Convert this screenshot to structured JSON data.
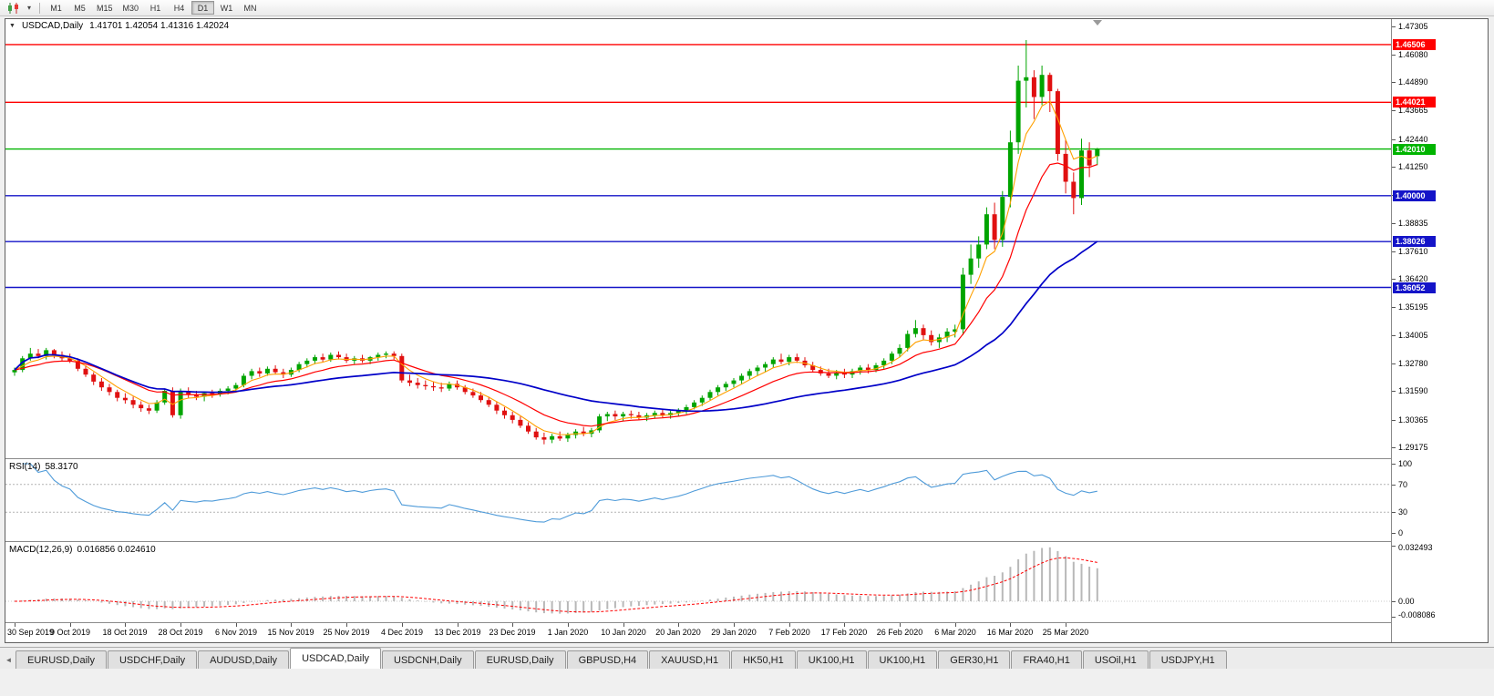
{
  "icons": {
    "collapse": "▼",
    "dropdown": "▾",
    "tab_scroll_left": "◄"
  },
  "toolbar": {
    "timeframes": [
      {
        "label": "M1",
        "active": false
      },
      {
        "label": "M5",
        "active": false
      },
      {
        "label": "M15",
        "active": false
      },
      {
        "label": "M30",
        "active": false
      },
      {
        "label": "H1",
        "active": false
      },
      {
        "label": "H4",
        "active": false
      },
      {
        "label": "D1",
        "active": true
      },
      {
        "label": "W1",
        "active": false
      },
      {
        "label": "MN",
        "active": false
      }
    ]
  },
  "chart": {
    "title": "USDCAD,Daily",
    "ohlc": "1.41701 1.42054 1.41316 1.42024"
  },
  "rsi": {
    "name": "RSI(14)",
    "value": "58.3170",
    "period": 14,
    "levels": [
      70,
      30
    ],
    "scale": [
      "100",
      "70",
      "30",
      "0"
    ]
  },
  "macd": {
    "name": "MACD(12,26,9)",
    "values": "0.016856 0.024610",
    "fast": 12,
    "slow": 26,
    "signal": 9,
    "scale_max": "0.032493",
    "scale_zero": "0.00",
    "scale_min": "-0.008086"
  },
  "colors": {
    "bull": "#00a400",
    "bear": "#e01010",
    "ma_fast": "#ffa000",
    "ma_mid": "#ff0000",
    "ma_slow": "#0000c8",
    "rsi": "#4f9bd9",
    "macd_hist": "#b8b8b8",
    "macd_signal": "#ff0000",
    "hline_red": "#ff0000",
    "hline_green": "#00b400",
    "hline_blue": "#1414c8"
  },
  "tabs": [
    {
      "label": "EURUSD,Daily",
      "active": false
    },
    {
      "label": "USDCHF,Daily",
      "active": false
    },
    {
      "label": "AUDUSD,Daily",
      "active": false
    },
    {
      "label": "USDCAD,Daily",
      "active": true
    },
    {
      "label": "USDCNH,Daily",
      "active": false
    },
    {
      "label": "EURUSD,Daily",
      "active": false
    },
    {
      "label": "GBPUSD,H4",
      "active": false
    },
    {
      "label": "XAUUSD,H1",
      "active": false
    },
    {
      "label": "HK50,H1",
      "active": false
    },
    {
      "label": "UK100,H1",
      "active": false
    },
    {
      "label": "UK100,H1",
      "active": false
    },
    {
      "label": "GER30,H1",
      "active": false
    },
    {
      "label": "FRA40,H1",
      "active": false
    },
    {
      "label": "USOil,H1",
      "active": false
    },
    {
      "label": "USDJPY,H1",
      "active": false
    }
  ],
  "chart_data": {
    "type": "candlestick",
    "symbol": "USDCAD",
    "timeframe": "Daily",
    "title": "USDCAD,Daily",
    "ohlc_display": {
      "open": "1.41701",
      "high": "1.42054",
      "low": "1.41316",
      "close": "1.42024"
    },
    "x_labels": [
      "30 Sep 2019",
      "9 Oct 2019",
      "18 Oct 2019",
      "28 Oct 2019",
      "6 Nov 2019",
      "15 Nov 2019",
      "25 Nov 2019",
      "4 Dec 2019",
      "13 Dec 2019",
      "23 Dec 2019",
      "1 Jan 2020",
      "10 Jan 2020",
      "20 Jan 2020",
      "29 Jan 2020",
      "7 Feb 2020",
      "17 Feb 2020",
      "26 Feb 2020",
      "6 Mar 2020",
      "16 Mar 2020",
      "25 Mar 2020"
    ],
    "y_ticks": [
      1.47305,
      1.4608,
      1.4489,
      1.43665,
      1.4244,
      1.4125,
      1.40025,
      1.38835,
      1.3761,
      1.3642,
      1.35195,
      1.34005,
      1.3278,
      1.3159,
      1.30365,
      1.29175
    ],
    "ylim": [
      1.287,
      1.476
    ],
    "hlines": [
      {
        "price": 1.46506,
        "label": "1.46506",
        "color": "#ff0000"
      },
      {
        "price": 1.44021,
        "label": "1.44021",
        "color": "#ff0000"
      },
      {
        "price": 1.4201,
        "label": "1.42010",
        "color": "#00b400"
      },
      {
        "price": 1.4,
        "label": "1.40000",
        "color": "#1414c8"
      },
      {
        "price": 1.38026,
        "label": "1.38026",
        "color": "#1414c8"
      },
      {
        "price": 1.36052,
        "label": "1.36052",
        "color": "#1414c8"
      }
    ],
    "overlays": [
      {
        "name": "ma-fast",
        "method": "ema",
        "period": 5,
        "color": "#ffa000"
      },
      {
        "name": "ma-mid",
        "method": "ema",
        "period": 13,
        "color": "#ff0000"
      },
      {
        "name": "ma-slow",
        "method": "lwma",
        "period": 50,
        "color": "#0000c8"
      }
    ],
    "candles": [
      [
        1.324,
        1.326,
        1.3225,
        1.325
      ],
      [
        1.325,
        1.331,
        1.324,
        1.33
      ],
      [
        1.33,
        1.3345,
        1.329,
        1.332
      ],
      [
        1.332,
        1.334,
        1.33,
        1.331
      ],
      [
        1.331,
        1.3345,
        1.3295,
        1.3335
      ],
      [
        1.3335,
        1.334,
        1.33,
        1.3315
      ],
      [
        1.3315,
        1.333,
        1.329,
        1.33
      ],
      [
        1.33,
        1.332,
        1.328,
        1.329
      ],
      [
        1.329,
        1.33,
        1.3245,
        1.3255
      ],
      [
        1.3255,
        1.327,
        1.322,
        1.323
      ],
      [
        1.323,
        1.324,
        1.3185,
        1.32
      ],
      [
        1.32,
        1.3215,
        1.316,
        1.3175
      ],
      [
        1.3175,
        1.319,
        1.314,
        1.3155
      ],
      [
        1.3155,
        1.3165,
        1.3115,
        1.313
      ],
      [
        1.313,
        1.315,
        1.3105,
        1.312
      ],
      [
        1.312,
        1.3135,
        1.3085,
        1.31
      ],
      [
        1.31,
        1.3115,
        1.307,
        1.3085
      ],
      [
        1.3085,
        1.31,
        1.306,
        1.3075
      ],
      [
        1.3075,
        1.312,
        1.3065,
        1.311
      ],
      [
        1.311,
        1.317,
        1.31,
        1.316
      ],
      [
        1.316,
        1.3175,
        1.3045,
        1.3055
      ],
      [
        1.3055,
        1.317,
        1.304,
        1.316
      ],
      [
        1.316,
        1.3175,
        1.313,
        1.3145
      ],
      [
        1.3145,
        1.316,
        1.312,
        1.3135
      ],
      [
        1.3135,
        1.3155,
        1.3115,
        1.315
      ],
      [
        1.315,
        1.3165,
        1.313,
        1.3145
      ],
      [
        1.3145,
        1.317,
        1.3135,
        1.316
      ],
      [
        1.316,
        1.318,
        1.3145,
        1.317
      ],
      [
        1.317,
        1.3195,
        1.3155,
        1.3185
      ],
      [
        1.3185,
        1.3235,
        1.3175,
        1.3225
      ],
      [
        1.3225,
        1.3255,
        1.321,
        1.3245
      ],
      [
        1.3245,
        1.326,
        1.322,
        1.3235
      ],
      [
        1.3235,
        1.3265,
        1.3225,
        1.3255
      ],
      [
        1.3255,
        1.327,
        1.323,
        1.324
      ],
      [
        1.324,
        1.3255,
        1.3215,
        1.323
      ],
      [
        1.323,
        1.326,
        1.322,
        1.325
      ],
      [
        1.325,
        1.3285,
        1.324,
        1.3275
      ],
      [
        1.3275,
        1.33,
        1.326,
        1.329
      ],
      [
        1.329,
        1.3315,
        1.3275,
        1.3305
      ],
      [
        1.3305,
        1.332,
        1.3285,
        1.3295
      ],
      [
        1.3295,
        1.3325,
        1.3285,
        1.3315
      ],
      [
        1.3315,
        1.333,
        1.3295,
        1.3305
      ],
      [
        1.3305,
        1.332,
        1.328,
        1.329
      ],
      [
        1.329,
        1.331,
        1.3275,
        1.33
      ],
      [
        1.33,
        1.3315,
        1.328,
        1.329
      ],
      [
        1.329,
        1.331,
        1.3275,
        1.3305
      ],
      [
        1.3305,
        1.3325,
        1.329,
        1.3315
      ],
      [
        1.3315,
        1.333,
        1.33,
        1.332
      ],
      [
        1.332,
        1.333,
        1.3295,
        1.331
      ],
      [
        1.331,
        1.332,
        1.3195,
        1.3205
      ],
      [
        1.3205,
        1.323,
        1.318,
        1.3195
      ],
      [
        1.3195,
        1.3215,
        1.317,
        1.3185
      ],
      [
        1.3185,
        1.3205,
        1.3165,
        1.318
      ],
      [
        1.318,
        1.32,
        1.316,
        1.3175
      ],
      [
        1.3175,
        1.3195,
        1.3155,
        1.317
      ],
      [
        1.317,
        1.32,
        1.316,
        1.319
      ],
      [
        1.319,
        1.3205,
        1.3165,
        1.3175
      ],
      [
        1.3175,
        1.3185,
        1.3145,
        1.3155
      ],
      [
        1.3155,
        1.317,
        1.313,
        1.314
      ],
      [
        1.314,
        1.3155,
        1.311,
        1.312
      ],
      [
        1.312,
        1.3135,
        1.309,
        1.31
      ],
      [
        1.31,
        1.3115,
        1.306,
        1.3075
      ],
      [
        1.3075,
        1.309,
        1.304,
        1.3055
      ],
      [
        1.3055,
        1.307,
        1.302,
        1.3035
      ],
      [
        1.3035,
        1.305,
        1.3,
        1.301
      ],
      [
        1.301,
        1.3025,
        1.2975,
        1.2985
      ],
      [
        1.2985,
        1.3,
        1.295,
        1.296
      ],
      [
        1.296,
        1.298,
        1.293,
        1.295
      ],
      [
        1.295,
        1.2975,
        1.2935,
        1.2965
      ],
      [
        1.2965,
        1.2985,
        1.2945,
        1.2955
      ],
      [
        1.2955,
        1.298,
        1.294,
        1.297
      ],
      [
        1.297,
        1.2995,
        1.2955,
        1.2985
      ],
      [
        1.2985,
        1.3005,
        1.2965,
        1.2975
      ],
      [
        1.2975,
        1.3,
        1.296,
        1.299
      ],
      [
        1.299,
        1.306,
        1.298,
        1.305
      ],
      [
        1.305,
        1.307,
        1.303,
        1.306
      ],
      [
        1.306,
        1.3075,
        1.3035,
        1.305
      ],
      [
        1.305,
        1.307,
        1.303,
        1.306
      ],
      [
        1.306,
        1.3075,
        1.304,
        1.3055
      ],
      [
        1.3055,
        1.307,
        1.3035,
        1.3045
      ],
      [
        1.3045,
        1.3065,
        1.303,
        1.3055
      ],
      [
        1.3055,
        1.3075,
        1.304,
        1.3065
      ],
      [
        1.3065,
        1.308,
        1.3045,
        1.3055
      ],
      [
        1.3055,
        1.3075,
        1.304,
        1.3065
      ],
      [
        1.3065,
        1.3085,
        1.305,
        1.3075
      ],
      [
        1.3075,
        1.31,
        1.306,
        1.309
      ],
      [
        1.309,
        1.312,
        1.308,
        1.311
      ],
      [
        1.311,
        1.314,
        1.3095,
        1.313
      ],
      [
        1.313,
        1.3165,
        1.312,
        1.3155
      ],
      [
        1.3155,
        1.3185,
        1.314,
        1.3175
      ],
      [
        1.3175,
        1.32,
        1.316,
        1.319
      ],
      [
        1.319,
        1.3215,
        1.3175,
        1.3205
      ],
      [
        1.3205,
        1.3235,
        1.319,
        1.3225
      ],
      [
        1.3225,
        1.3255,
        1.321,
        1.3245
      ],
      [
        1.3245,
        1.327,
        1.3225,
        1.326
      ],
      [
        1.326,
        1.3285,
        1.324,
        1.3275
      ],
      [
        1.3275,
        1.3305,
        1.326,
        1.3295
      ],
      [
        1.3295,
        1.332,
        1.3275,
        1.3285
      ],
      [
        1.3285,
        1.3315,
        1.327,
        1.3305
      ],
      [
        1.3305,
        1.332,
        1.328,
        1.329
      ],
      [
        1.329,
        1.3305,
        1.326,
        1.327
      ],
      [
        1.327,
        1.3285,
        1.324,
        1.325
      ],
      [
        1.325,
        1.3265,
        1.3225,
        1.3235
      ],
      [
        1.3235,
        1.3255,
        1.3215,
        1.3225
      ],
      [
        1.3225,
        1.325,
        1.321,
        1.324
      ],
      [
        1.324,
        1.3255,
        1.3215,
        1.323
      ],
      [
        1.323,
        1.3255,
        1.3215,
        1.3245
      ],
      [
        1.3245,
        1.327,
        1.323,
        1.326
      ],
      [
        1.326,
        1.3275,
        1.3235,
        1.325
      ],
      [
        1.325,
        1.328,
        1.324,
        1.327
      ],
      [
        1.327,
        1.33,
        1.3255,
        1.329
      ],
      [
        1.329,
        1.333,
        1.3275,
        1.332
      ],
      [
        1.332,
        1.336,
        1.3305,
        1.3345
      ],
      [
        1.3345,
        1.342,
        1.333,
        1.3405
      ],
      [
        1.3405,
        1.3465,
        1.339,
        1.343
      ],
      [
        1.343,
        1.3445,
        1.338,
        1.34
      ],
      [
        1.34,
        1.342,
        1.3355,
        1.337
      ],
      [
        1.337,
        1.3405,
        1.3345,
        1.339
      ],
      [
        1.339,
        1.343,
        1.337,
        1.3415
      ],
      [
        1.3415,
        1.3445,
        1.339,
        1.3425
      ],
      [
        1.3425,
        1.369,
        1.34,
        1.366
      ],
      [
        1.366,
        1.379,
        1.362,
        1.373
      ],
      [
        1.373,
        1.3825,
        1.369,
        1.379
      ],
      [
        1.379,
        1.395,
        1.377,
        1.392
      ],
      [
        1.392,
        1.397,
        1.377,
        1.381
      ],
      [
        1.381,
        1.402,
        1.378,
        1.3995
      ],
      [
        1.3995,
        1.428,
        1.395,
        1.423
      ],
      [
        1.423,
        1.456,
        1.418,
        1.4495
      ],
      [
        1.4495,
        1.467,
        1.438,
        1.451
      ],
      [
        1.451,
        1.454,
        1.433,
        1.4425
      ],
      [
        1.4425,
        1.456,
        1.439,
        1.452
      ],
      [
        1.452,
        1.453,
        1.436,
        1.445
      ],
      [
        1.445,
        1.446,
        1.415,
        1.418
      ],
      [
        1.418,
        1.424,
        1.401,
        1.406
      ],
      [
        1.406,
        1.41,
        1.392,
        1.399
      ],
      [
        1.399,
        1.4245,
        1.396,
        1.4195
      ],
      [
        1.4195,
        1.423,
        1.408,
        1.413
      ],
      [
        1.41701,
        1.42054,
        1.41316,
        1.42024
      ]
    ]
  }
}
